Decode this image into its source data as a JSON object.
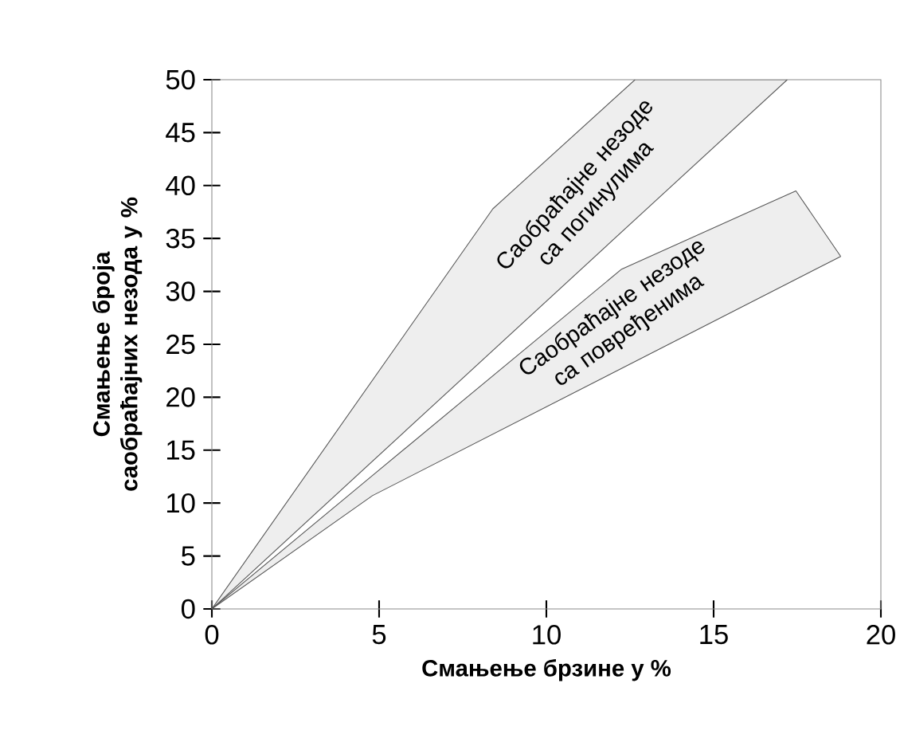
{
  "chart_data": {
    "type": "line",
    "xlabel": "Смањење брзине у %",
    "ylabel": "Смањење броја саобраћајних незода у  %",
    "xlim": [
      0,
      20
    ],
    "ylim": [
      0,
      50
    ],
    "xticks": [
      0,
      5,
      10,
      15,
      20
    ],
    "yticks": [
      0,
      5,
      10,
      15,
      20,
      25,
      30,
      35,
      40,
      45,
      50
    ],
    "series": [
      {
        "color": "#555555",
        "x": [
          0,
          8.4,
          12.65,
          17.2
        ],
        "values": [
          0,
          37.8,
          50,
          50
        ],
        "lower": [
          0,
          24.4,
          36.8,
          50
        ],
        "upper": [
          0,
          37.8,
          50,
          50
        ]
      },
      {
        "color": "#555555",
        "x": [
          0,
          4.8,
          12.25,
          17.46,
          18.8
        ],
        "values": [
          0,
          12.6,
          32.1,
          39.5,
          33.3
        ],
        "lower": [
          0,
          10.7,
          22.7,
          31.1,
          33.3
        ],
        "upper": [
          0,
          12.6,
          32.1,
          39.5,
          33.3
        ]
      },
      {
        "color": "#555555",
        "x": [
          0,
          17.2
        ],
        "values": [
          0,
          50
        ]
      },
      {
        "color": "#555555",
        "x": [
          0,
          4.8,
          18.8
        ],
        "values": [
          0,
          10.7,
          33.3
        ]
      }
    ],
    "annotations": [
      "Саобраћајне незоде са погинулима",
      "Саобраћајне незоде са повређенима"
    ]
  }
}
